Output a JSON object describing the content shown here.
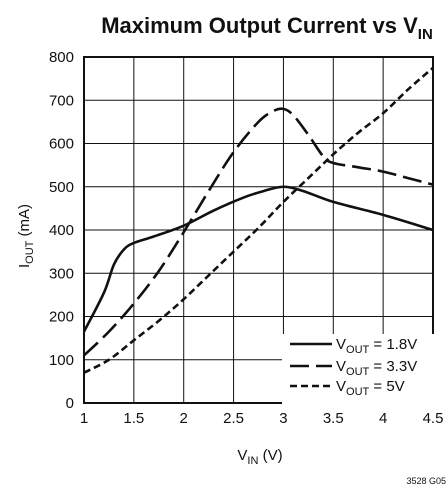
{
  "chart_data": {
    "type": "line",
    "title": {
      "main": "Maximum Output Current vs V",
      "sub": "IN"
    },
    "xlabel": {
      "main": "V",
      "sub": "IN",
      "rest": " (V)"
    },
    "ylabel": {
      "main": "I",
      "sub": "OUT",
      "rest": " (mA)"
    },
    "xlim": [
      1,
      4.5
    ],
    "ylim": [
      0,
      800
    ],
    "x_ticks": [
      1,
      1.5,
      2,
      2.5,
      3,
      3.5,
      4,
      4.5
    ],
    "x_tick_labels": [
      "1",
      "1.5",
      "2",
      "2.5",
      "3",
      "3.5",
      "4",
      "4.5"
    ],
    "y_ticks": [
      0,
      100,
      200,
      300,
      400,
      500,
      600,
      700,
      800
    ],
    "y_tick_labels": [
      "0",
      "100",
      "200",
      "300",
      "400",
      "500",
      "600",
      "700",
      "800"
    ],
    "grid": true,
    "legend_position": "bottom-right",
    "series": [
      {
        "name": "1.8V",
        "legend": {
          "main": "V",
          "sub": "OUT",
          "rest": " = 1.8V"
        },
        "dash": "solid",
        "x": [
          1,
          1.2,
          1.3,
          1.4,
          1.5,
          1.7,
          2,
          2.3,
          2.6,
          2.8,
          3,
          3.2,
          3.5,
          4,
          4.5
        ],
        "y": [
          165,
          255,
          320,
          355,
          370,
          385,
          410,
          445,
          475,
          490,
          500,
          490,
          465,
          435,
          400
        ]
      },
      {
        "name": "3.3V",
        "legend": {
          "main": "V",
          "sub": "OUT",
          "rest": " = 3.3V"
        },
        "dash": "long",
        "x": [
          1,
          1.25,
          1.5,
          1.75,
          2,
          2.25,
          2.5,
          2.75,
          2.9,
          3,
          3.1,
          3.25,
          3.4,
          3.5,
          3.75,
          4,
          4.25,
          4.5
        ],
        "y": [
          110,
          165,
          230,
          305,
          395,
          490,
          580,
          650,
          675,
          680,
          665,
          620,
          570,
          555,
          545,
          535,
          520,
          505
        ]
      },
      {
        "name": "5V",
        "legend": {
          "main": "V",
          "sub": "OUT",
          "rest": " = 5V"
        },
        "dash": "short",
        "x": [
          1,
          1.25,
          1.5,
          1.75,
          2,
          2.25,
          2.5,
          2.75,
          3,
          3.25,
          3.5,
          3.75,
          4,
          4.25,
          4.5
        ],
        "y": [
          70,
          100,
          145,
          190,
          240,
          295,
          350,
          405,
          465,
          520,
          575,
          625,
          670,
          725,
          775
        ]
      }
    ],
    "note": "3528 G05"
  },
  "colors": {
    "line": "#111111",
    "grid": "#111111",
    "background": "#ffffff"
  }
}
